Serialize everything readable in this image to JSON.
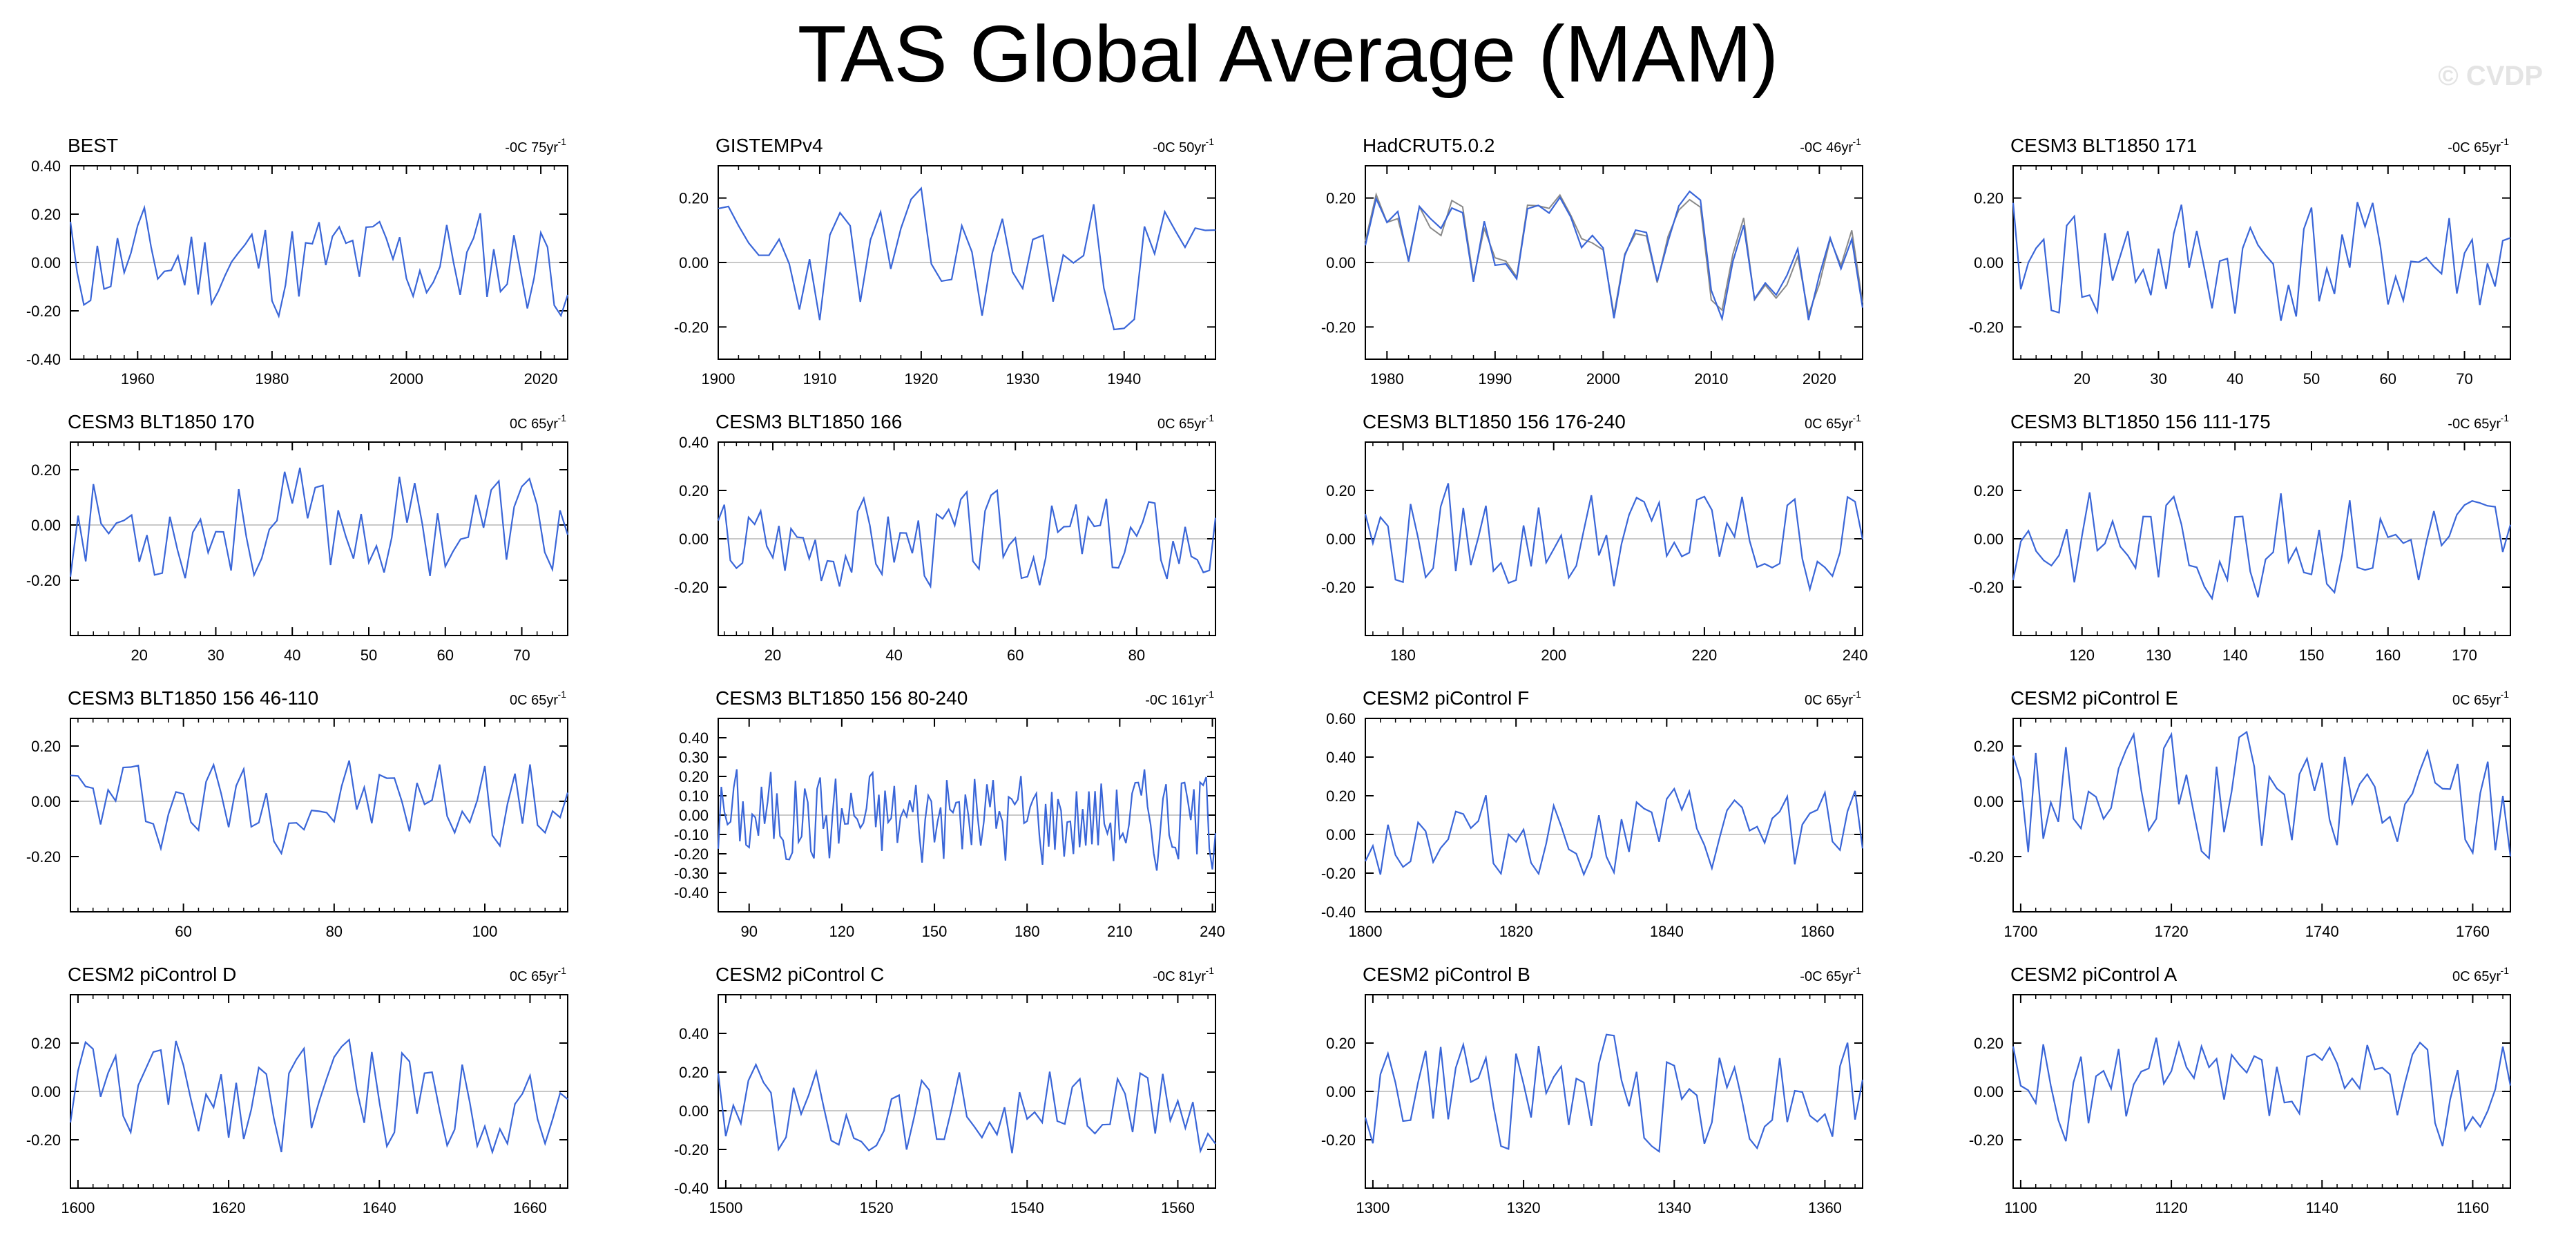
{
  "title": "TAS Global Average (MAM)",
  "credit": "© CVDP",
  "colors": {
    "line": "#3a66d8",
    "obs2": "#8a8a8a",
    "zero": "#c8c8c8",
    "axis": "#000000"
  },
  "chart_data": [
    {
      "type": "line",
      "title": "BEST",
      "trend": "-0C 75yr",
      "x_start": 1950,
      "x_end": 2024,
      "ylim": [
        -0.4,
        0.4
      ],
      "yticks": [
        "0.40",
        "0.20",
        "0.00",
        "-0.20",
        "-0.40"
      ],
      "yvals": [
        0.4,
        0.2,
        0,
        -0.2,
        -0.4
      ],
      "xticks": [
        1960,
        1980,
        2000,
        2020
      ],
      "seed": 11,
      "amp": 0.13,
      "extra_series": false
    },
    {
      "type": "line",
      "title": "GISTEMPv4",
      "trend": "-0C 50yr",
      "x_start": 1900,
      "x_end": 1949,
      "ylim": [
        -0.3,
        0.3
      ],
      "yticks": [
        "0.20",
        "0.00",
        "-0.20"
      ],
      "yvals": [
        0.2,
        0,
        -0.2
      ],
      "xticks": [
        1900,
        1910,
        1920,
        1930,
        1940
      ],
      "seed": 23,
      "amp": 0.12,
      "extra_series": false
    },
    {
      "type": "line",
      "title": "HadCRUT5.0.2",
      "trend": "-0C 46yr",
      "x_start": 1978,
      "x_end": 2024,
      "ylim": [
        -0.3,
        0.3
      ],
      "yticks": [
        "0.20",
        "0.00",
        "-0.20"
      ],
      "yvals": [
        0.2,
        0,
        -0.2
      ],
      "xticks": [
        1980,
        1990,
        2000,
        2010,
        2020
      ],
      "seed": 37,
      "amp": 0.12,
      "extra_series": true
    },
    {
      "type": "line",
      "title": "CESM3 BLT1850 171",
      "trend": "-0C 65yr",
      "x_start": 11,
      "x_end": 76,
      "ylim": [
        -0.3,
        0.3
      ],
      "yticks": [
        "0.20",
        "0.00",
        "-0.20"
      ],
      "yvals": [
        0.2,
        0,
        -0.2
      ],
      "xticks": [
        20,
        30,
        40,
        50,
        60,
        70
      ],
      "seed": 41,
      "amp": 0.12,
      "extra_series": false
    },
    {
      "type": "line",
      "title": "CESM3 BLT1850 170",
      "trend": "0C 65yr",
      "x_start": 11,
      "x_end": 76,
      "ylim": [
        -0.4,
        0.3
      ],
      "yticks": [
        "0.20",
        "0.00",
        "-0.20"
      ],
      "yvals": [
        0.2,
        0,
        -0.2
      ],
      "xticks": [
        20,
        30,
        40,
        50,
        60,
        70
      ],
      "seed": 53,
      "amp": 0.12,
      "extra_series": false
    },
    {
      "type": "line",
      "title": "CESM3 BLT1850 166",
      "trend": "0C 65yr",
      "x_start": 11,
      "x_end": 93,
      "ylim": [
        -0.4,
        0.4
      ],
      "yticks": [
        "0.40",
        "0.20",
        "0.00",
        "-0.20"
      ],
      "yvals": [
        0.4,
        0.2,
        0,
        -0.2
      ],
      "xticks": [
        20,
        40,
        60,
        80
      ],
      "seed": 67,
      "amp": 0.11,
      "extra_series": false
    },
    {
      "type": "line",
      "title": "CESM3 BLT1850 156 176-240",
      "trend": "0C 65yr",
      "x_start": 175,
      "x_end": 241,
      "ylim": [
        -0.4,
        0.4
      ],
      "yticks": [
        "0.20",
        "0.00",
        "-0.20"
      ],
      "yvals": [
        0.2,
        0,
        -0.2
      ],
      "xticks": [
        180,
        200,
        220,
        240
      ],
      "seed": 79,
      "amp": 0.13,
      "extra_series": false
    },
    {
      "type": "line",
      "title": "CESM3 BLT1850 156 111-175",
      "trend": "-0C 65yr",
      "x_start": 111,
      "x_end": 176,
      "ylim": [
        -0.4,
        0.4
      ],
      "yticks": [
        "0.20",
        "0.00",
        "-0.20"
      ],
      "yvals": [
        0.2,
        0,
        -0.2
      ],
      "xticks": [
        120,
        130,
        140,
        150,
        160,
        170
      ],
      "seed": 83,
      "amp": 0.13,
      "extra_series": false
    },
    {
      "type": "line",
      "title": "CESM3 BLT1850 156 46-110",
      "trend": "0C 65yr",
      "x_start": 45,
      "x_end": 111,
      "ylim": [
        -0.4,
        0.3
      ],
      "yticks": [
        "0.20",
        "0.00",
        "-0.20"
      ],
      "yvals": [
        0.2,
        0,
        -0.2
      ],
      "xticks": [
        60,
        80,
        100
      ],
      "seed": 97,
      "amp": 0.1,
      "extra_series": false
    },
    {
      "type": "line",
      "title": "CESM3 BLT1850 156 80-240",
      "trend": "-0C 161yr",
      "x_start": 80,
      "x_end": 241,
      "ylim": [
        -0.5,
        0.5
      ],
      "yticks": [
        "0.40",
        "0.30",
        "0.20",
        "0.10",
        "0.00",
        "-0.10",
        "-0.20",
        "-0.30",
        "-0.40"
      ],
      "yvals": [
        0.4,
        0.3,
        0.2,
        0.1,
        0,
        -0.1,
        -0.2,
        -0.3,
        -0.4
      ],
      "xticks": [
        90,
        120,
        150,
        180,
        210,
        240
      ],
      "seed": 101,
      "amp": 0.15,
      "extra_series": false
    },
    {
      "type": "line",
      "title": "CESM2 piControl F",
      "trend": "0C 65yr",
      "x_start": 1800,
      "x_end": 1866,
      "ylim": [
        -0.4,
        0.6
      ],
      "yticks": [
        "0.60",
        "0.40",
        "0.20",
        "0.00",
        "-0.20",
        "-0.40"
      ],
      "yvals": [
        0.6,
        0.4,
        0.2,
        0,
        -0.2,
        -0.4
      ],
      "xticks": [
        1800,
        1820,
        1840,
        1860
      ],
      "seed": 113,
      "amp": 0.13,
      "extra_series": false
    },
    {
      "type": "line",
      "title": "CESM2 piControl E",
      "trend": "0C 65yr",
      "x_start": 1699,
      "x_end": 1765,
      "ylim": [
        -0.4,
        0.3
      ],
      "yticks": [
        "0.20",
        "0.00",
        "-0.20"
      ],
      "yvals": [
        0.2,
        0,
        -0.2
      ],
      "xticks": [
        1700,
        1720,
        1740,
        1760
      ],
      "seed": 127,
      "amp": 0.14,
      "extra_series": false
    },
    {
      "type": "line",
      "title": "CESM2 piControl D",
      "trend": "0C 65yr",
      "x_start": 1599,
      "x_end": 1665,
      "ylim": [
        -0.4,
        0.4
      ],
      "yticks": [
        "0.20",
        "0.00",
        "-0.20"
      ],
      "yvals": [
        0.2,
        0,
        -0.2
      ],
      "xticks": [
        1600,
        1620,
        1640,
        1660
      ],
      "seed": 131,
      "amp": 0.14,
      "extra_series": false
    },
    {
      "type": "line",
      "title": "CESM2 piControl C",
      "trend": "-0C 81yr",
      "x_start": 1499,
      "x_end": 1565,
      "ylim": [
        -0.4,
        0.6
      ],
      "yticks": [
        "0.40",
        "0.20",
        "0.00",
        "-0.20",
        "-0.40"
      ],
      "yvals": [
        0.4,
        0.2,
        0,
        -0.2,
        -0.4
      ],
      "xticks": [
        1500,
        1520,
        1540,
        1560
      ],
      "seed": 139,
      "amp": 0.15,
      "extra_series": false
    },
    {
      "type": "line",
      "title": "CESM2 piControl B",
      "trend": "-0C 65yr",
      "x_start": 1299,
      "x_end": 1365,
      "ylim": [
        -0.4,
        0.4
      ],
      "yticks": [
        "0.20",
        "0.00",
        "-0.20"
      ],
      "yvals": [
        0.2,
        0,
        -0.2
      ],
      "xticks": [
        1300,
        1320,
        1340,
        1360
      ],
      "seed": 149,
      "amp": 0.14,
      "extra_series": false
    },
    {
      "type": "line",
      "title": "CESM2 piControl A",
      "trend": "0C 65yr",
      "x_start": 1099,
      "x_end": 1165,
      "ylim": [
        -0.4,
        0.4
      ],
      "yticks": [
        "0.20",
        "0.00",
        "-0.20"
      ],
      "yvals": [
        0.2,
        0,
        -0.2
      ],
      "xticks": [
        1100,
        1120,
        1140,
        1160
      ],
      "seed": 157,
      "amp": 0.13,
      "extra_series": false
    }
  ]
}
